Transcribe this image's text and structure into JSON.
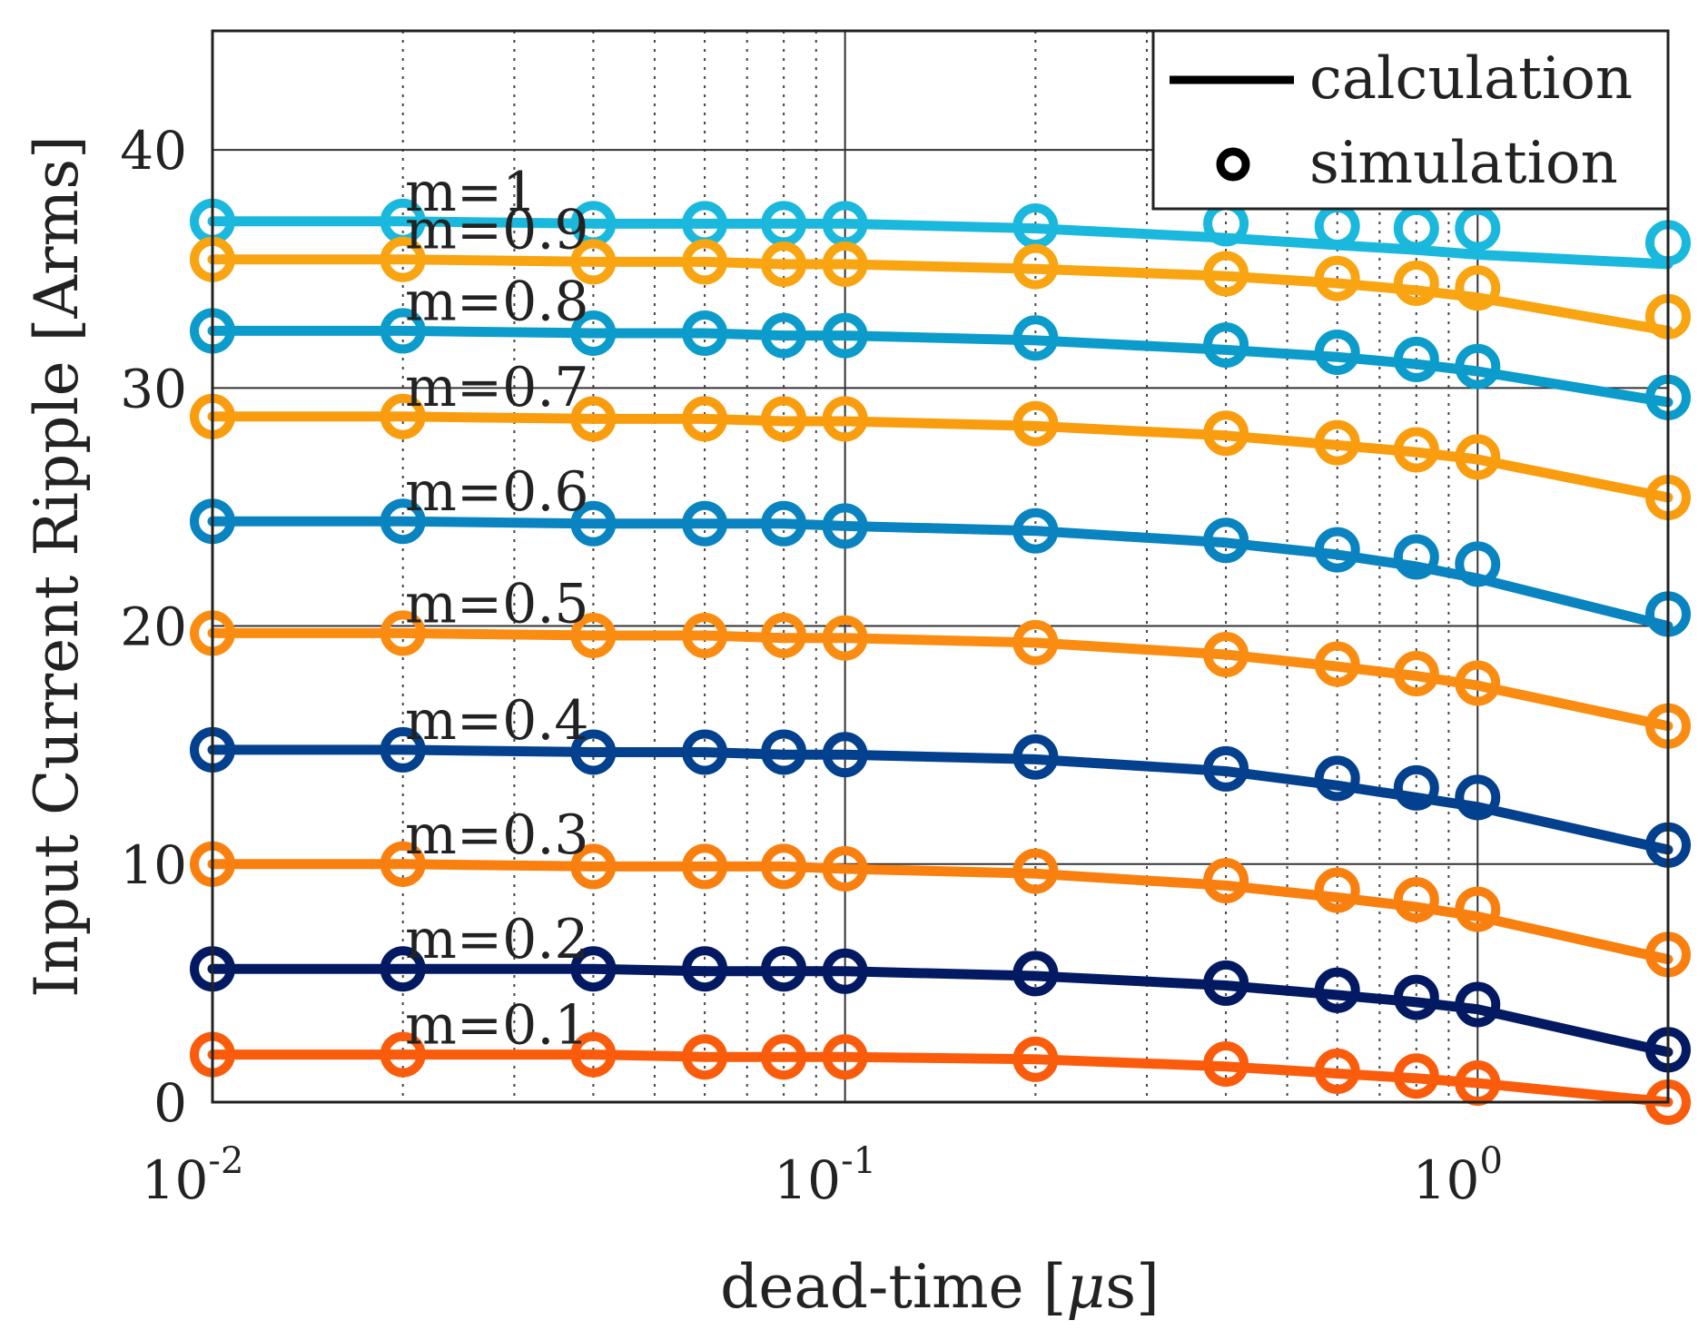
{
  "chart_data": {
    "type": "line",
    "title": "",
    "xlabel": "dead-time [",
    "xlabel_mu": "μ",
    "xlabel_end": "s]",
    "ylabel": "Input Current Ripple [Arms]",
    "xscale": "log",
    "xlim": [
      0.01,
      2
    ],
    "ylim": [
      0,
      45
    ],
    "yticks": [
      0,
      10,
      20,
      30,
      40
    ],
    "yticklabels": [
      "0",
      "10",
      "20",
      "30",
      "40"
    ],
    "xticks": [
      0.01,
      0.1,
      1
    ],
    "xtick_base": "10",
    "xtick_exponents": [
      "-2",
      "-1",
      "0"
    ],
    "grid": true,
    "legend": {
      "position": "top-right",
      "entries": [
        {
          "label": "calculation",
          "marker": "line"
        },
        {
          "label": "simulation",
          "marker": "circle"
        }
      ]
    },
    "x": [
      0.01,
      0.02,
      0.04,
      0.06,
      0.08,
      0.1,
      0.2,
      0.4,
      0.6,
      0.8,
      1.0,
      2.0
    ],
    "series": [
      {
        "name": "m=1",
        "color": "#1ab8dd",
        "calc": [
          37.0,
          37.0,
          36.9,
          36.9,
          36.9,
          36.9,
          36.7,
          36.3,
          36.0,
          35.8,
          35.6,
          35.2
        ],
        "sim": [
          37.0,
          37.0,
          36.9,
          36.9,
          36.9,
          36.9,
          36.8,
          36.9,
          36.8,
          36.7,
          36.7,
          36.1
        ]
      },
      {
        "name": "m=0.9",
        "color": "#f9a411",
        "calc": [
          35.4,
          35.4,
          35.3,
          35.3,
          35.2,
          35.2,
          35.0,
          34.7,
          34.4,
          34.1,
          33.8,
          32.4
        ],
        "sim": [
          35.4,
          35.4,
          35.3,
          35.3,
          35.2,
          35.2,
          35.1,
          34.8,
          34.6,
          34.4,
          34.2,
          33.0
        ]
      },
      {
        "name": "m=0.8",
        "color": "#0b9ccb",
        "calc": [
          32.4,
          32.4,
          32.3,
          32.3,
          32.2,
          32.2,
          32.0,
          31.6,
          31.3,
          31.0,
          30.7,
          29.4
        ],
        "sim": [
          32.4,
          32.4,
          32.3,
          32.3,
          32.2,
          32.2,
          32.1,
          31.8,
          31.5,
          31.2,
          30.9,
          29.6
        ]
      },
      {
        "name": "m=0.7",
        "color": "#f99d0f",
        "calc": [
          28.8,
          28.8,
          28.7,
          28.7,
          28.6,
          28.6,
          28.4,
          28.0,
          27.6,
          27.3,
          27.0,
          25.4
        ],
        "sim": [
          28.8,
          28.8,
          28.7,
          28.7,
          28.7,
          28.7,
          28.5,
          28.1,
          27.7,
          27.4,
          27.1,
          25.4
        ]
      },
      {
        "name": "m=0.6",
        "color": "#0984c0",
        "calc": [
          24.4,
          24.4,
          24.3,
          24.3,
          24.3,
          24.2,
          24.0,
          23.5,
          23.0,
          22.5,
          22.0,
          20.0
        ],
        "sim": [
          24.4,
          24.4,
          24.3,
          24.3,
          24.3,
          24.2,
          24.0,
          23.6,
          23.2,
          22.9,
          22.6,
          20.5
        ]
      },
      {
        "name": "m=0.5",
        "color": "#fa8d11",
        "calc": [
          19.7,
          19.7,
          19.6,
          19.6,
          19.5,
          19.5,
          19.3,
          18.8,
          18.3,
          17.9,
          17.5,
          15.8
        ],
        "sim": [
          19.7,
          19.7,
          19.6,
          19.6,
          19.6,
          19.5,
          19.3,
          18.8,
          18.4,
          18.0,
          17.6,
          15.8
        ]
      },
      {
        "name": "m=0.4",
        "color": "#03408e",
        "calc": [
          14.8,
          14.8,
          14.7,
          14.7,
          14.6,
          14.6,
          14.4,
          13.9,
          13.3,
          12.8,
          12.4,
          10.6
        ],
        "sim": [
          14.8,
          14.8,
          14.7,
          14.7,
          14.7,
          14.6,
          14.5,
          14.0,
          13.6,
          13.2,
          12.8,
          10.8
        ]
      },
      {
        "name": "m=0.3",
        "color": "#f9800f",
        "calc": [
          10.0,
          10.0,
          9.9,
          9.9,
          9.9,
          9.8,
          9.6,
          9.1,
          8.6,
          8.2,
          7.8,
          6.0
        ],
        "sim": [
          10.0,
          10.0,
          9.9,
          9.9,
          9.9,
          9.8,
          9.7,
          9.3,
          8.9,
          8.5,
          8.1,
          6.2
        ]
      },
      {
        "name": "m=0.2",
        "color": "#031a63",
        "calc": [
          5.6,
          5.6,
          5.6,
          5.5,
          5.5,
          5.5,
          5.3,
          4.9,
          4.5,
          4.2,
          3.9,
          2.1
        ],
        "sim": [
          5.6,
          5.6,
          5.6,
          5.6,
          5.6,
          5.5,
          5.4,
          5.0,
          4.7,
          4.4,
          4.1,
          2.2
        ]
      },
      {
        "name": "m=0.1",
        "color": "#fa5c0c",
        "calc": [
          2.0,
          2.0,
          2.0,
          1.9,
          1.9,
          1.9,
          1.8,
          1.5,
          1.2,
          1.0,
          0.8,
          0.0
        ],
        "sim": [
          2.0,
          2.0,
          2.0,
          1.9,
          1.9,
          1.9,
          1.8,
          1.6,
          1.3,
          1.1,
          0.8,
          0.0
        ]
      }
    ]
  }
}
